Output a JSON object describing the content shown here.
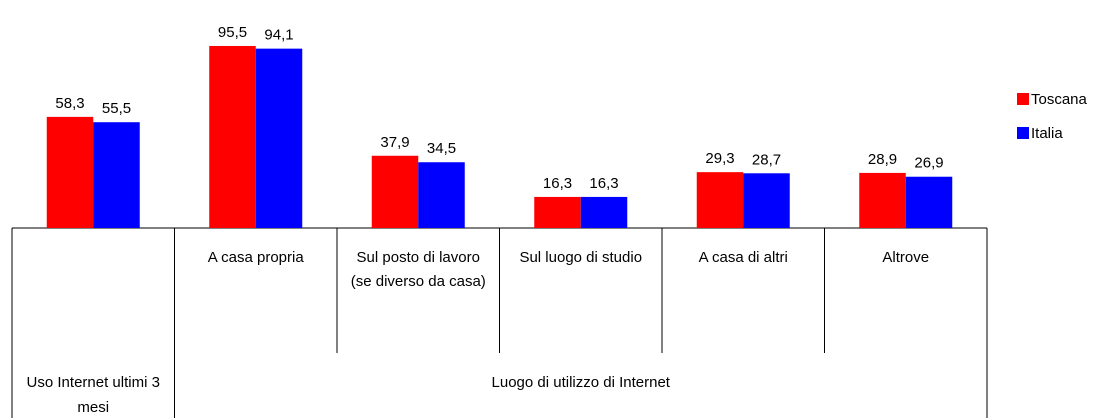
{
  "chart_data": {
    "type": "bar",
    "categories": [
      null,
      "A casa propria",
      "Sul posto di lavoro (se diverso da casa)",
      "Sul luogo di studio",
      "A casa di altri",
      "Altrove"
    ],
    "category_groups": [
      {
        "label": "Uso Internet ultimi 3 mesi",
        "count": 1
      },
      {
        "label": "Luogo di utilizzo di Internet",
        "count": 5
      }
    ],
    "series": [
      {
        "name": "Toscana",
        "color": "#ff0000",
        "values": [
          58.3,
          95.5,
          37.9,
          16.3,
          29.3,
          28.9
        ],
        "value_labels": [
          "58,3",
          "95,5",
          "37,9",
          "16,3",
          "29,3",
          "28,9"
        ]
      },
      {
        "name": "Italia",
        "color": "#0000ff",
        "values": [
          55.5,
          94.1,
          34.5,
          16.3,
          28.7,
          26.9
        ],
        "value_labels": [
          "55,5",
          "94,1",
          "34,5",
          "16,3",
          "28,7",
          "26,9"
        ]
      }
    ],
    "ylim": [
      0,
      100
    ],
    "legend": "right"
  }
}
